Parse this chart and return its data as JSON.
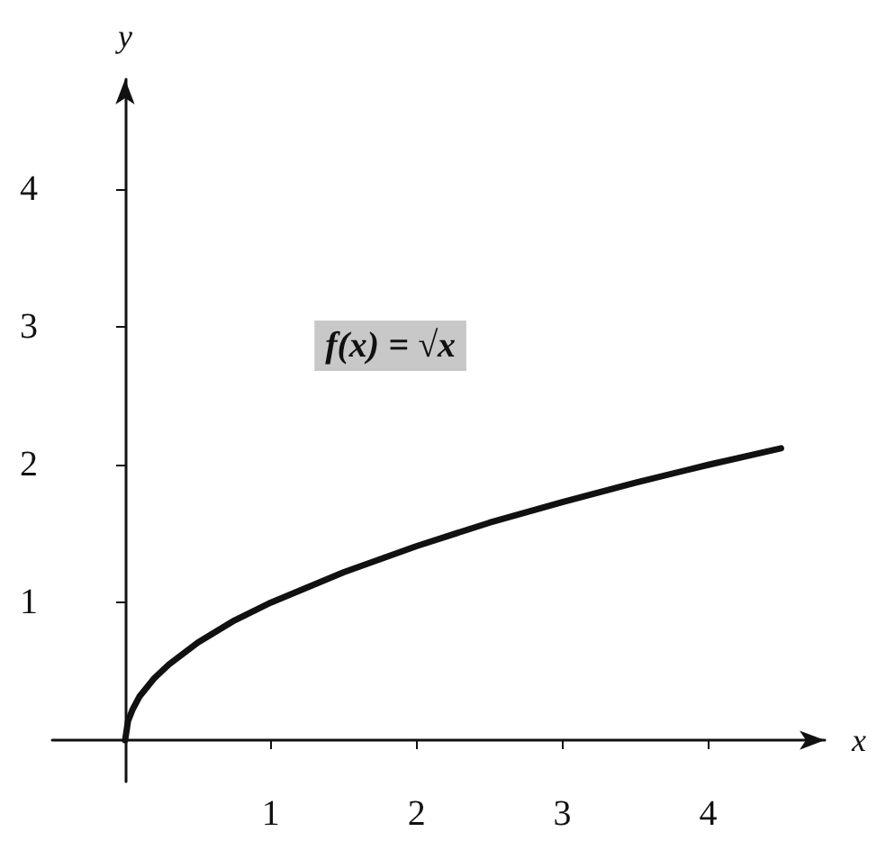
{
  "chart_data": {
    "type": "line",
    "xlabel": "x",
    "ylabel": "y",
    "annotations": [
      "f(x) = √x"
    ],
    "x": [
      0,
      0.02,
      0.05,
      0.1,
      0.2,
      0.3,
      0.5,
      0.75,
      1,
      1.5,
      2,
      2.5,
      3,
      3.5,
      4,
      4.5
    ],
    "series": [
      {
        "color": "#111111",
        "values": [
          0,
          0.14,
          0.22,
          0.32,
          0.45,
          0.55,
          0.71,
          0.87,
          1,
          1.22,
          1.41,
          1.58,
          1.73,
          1.87,
          2,
          2.12
        ]
      }
    ],
    "xlim": [
      -0.5,
      4.8
    ],
    "ylim": [
      -0.3,
      4.8
    ],
    "xticks": [
      1,
      2,
      3,
      4
    ],
    "yticks": [
      1,
      2,
      3,
      4
    ],
    "grid": false,
    "marker": "none",
    "line_style": "solid"
  }
}
